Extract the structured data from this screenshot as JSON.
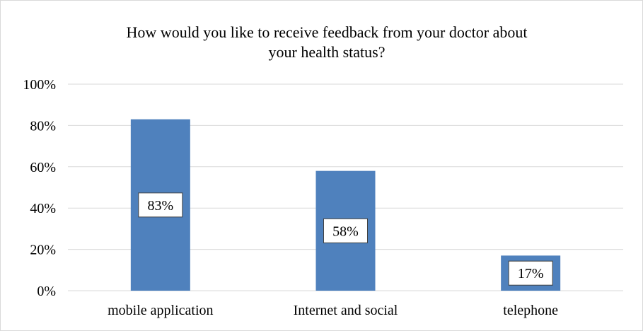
{
  "chart_data": {
    "type": "bar",
    "title": "How would you like to receive feedback from your doctor about your health status?",
    "title_lines": [
      "How would you like to receive feedback from your doctor about",
      "your health status?"
    ],
    "categories": [
      "mobile application",
      "Internet and social",
      "telephone"
    ],
    "values": [
      83,
      58,
      17
    ],
    "data_labels": [
      "83%",
      "58%",
      "17%"
    ],
    "y_ticks": [
      "0%",
      "20%",
      "40%",
      "60%",
      "80%",
      "100%"
    ],
    "ylim": [
      0,
      100
    ],
    "xlabel": "",
    "ylabel": "",
    "grid": true,
    "legend": "none",
    "bar_color": "#4f81bd",
    "grid_color": "#d9d9d9"
  }
}
